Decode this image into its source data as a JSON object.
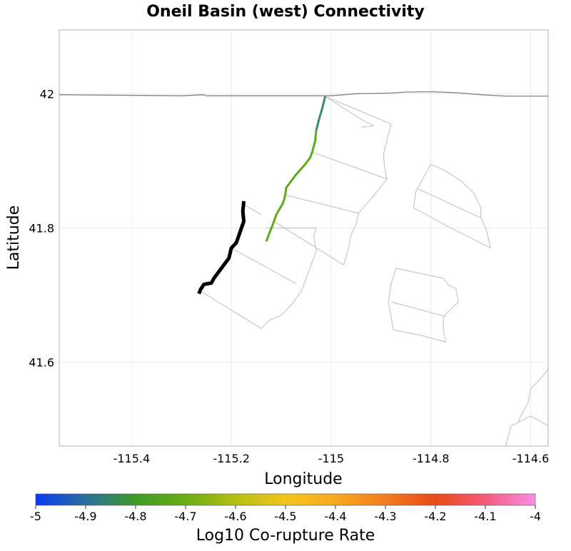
{
  "chart_data": {
    "type": "map",
    "title": "Oneil Basin (west) Connectivity",
    "xlabel": "Longitude",
    "ylabel": "Latitude",
    "xlim": [
      -115.545,
      -114.565
    ],
    "ylim": [
      41.475,
      42.095
    ],
    "xticks": [
      -115.4,
      -115.2,
      -115.0,
      -114.8,
      -114.6
    ],
    "xtick_labels": [
      "-115.4",
      "-115.2",
      "-115",
      "-114.8",
      "-114.6"
    ],
    "yticks": [
      41.6,
      41.8,
      42.0
    ],
    "ytick_labels": [
      "41.6",
      "41.8",
      "42"
    ],
    "grid": true,
    "boundary": {
      "name": "state-border",
      "color": "#808080",
      "coords": [
        [
          -115.545,
          41.9985
        ],
        [
          -115.38,
          41.9975
        ],
        [
          -115.3,
          41.997
        ],
        [
          -115.255,
          41.9985
        ],
        [
          -115.25,
          41.997
        ],
        [
          -115.08,
          41.997
        ],
        [
          -115.0,
          41.997
        ],
        [
          -114.95,
          42.0
        ],
        [
          -114.88,
          42.001
        ],
        [
          -114.85,
          42.0025
        ],
        [
          -114.8,
          42.003
        ],
        [
          -114.75,
          42.0015
        ],
        [
          -114.7,
          41.9985
        ],
        [
          -114.65,
          41.9965
        ],
        [
          -114.565,
          41.9965
        ]
      ]
    },
    "fault_outlines": [
      {
        "name": "oneil-basin-subsection-2",
        "coords": [
          [
            -115.012,
            41.996
          ],
          [
            -114.94,
            41.962
          ],
          [
            -114.915,
            41.952
          ],
          [
            -114.94,
            41.95
          ]
        ]
      },
      {
        "name": "oneil-basin-surface-1",
        "coords": [
          [
            -115.012,
            41.996
          ],
          [
            -114.88,
            41.955
          ],
          [
            -114.895,
            41.91
          ],
          [
            -114.893,
            41.89
          ],
          [
            -114.888,
            41.873
          ],
          [
            -114.915,
            41.848
          ],
          [
            -114.945,
            41.822
          ]
        ]
      },
      {
        "name": "oneil-basin-line-1",
        "coords": [
          [
            -115.038,
            41.913
          ],
          [
            -114.888,
            41.873
          ]
        ]
      },
      {
        "name": "oneil-basin-line-2",
        "coords": [
          [
            -115.092,
            41.849
          ],
          [
            -114.945,
            41.822
          ]
        ]
      },
      {
        "name": "oneil-basin-surface-2",
        "coords": [
          [
            -114.945,
            41.822
          ],
          [
            -114.95,
            41.805
          ],
          [
            -114.96,
            41.79
          ],
          [
            -114.965,
            41.77
          ],
          [
            -114.975,
            41.745
          ]
        ]
      },
      {
        "name": "oneil-basin-line-3",
        "coords": [
          [
            -115.115,
            41.81
          ],
          [
            -114.975,
            41.745
          ]
        ]
      },
      {
        "name": "oneil-basin-line-4",
        "coords": [
          [
            -115.13,
            41.8
          ],
          [
            -115.03,
            41.8
          ]
        ]
      },
      {
        "name": "oneil-basin-surface-3",
        "coords": [
          [
            -115.03,
            41.8
          ],
          [
            -115.035,
            41.788
          ],
          [
            -115.03,
            41.765
          ],
          [
            -115.04,
            41.745
          ],
          [
            -115.05,
            41.725
          ],
          [
            -115.06,
            41.705
          ],
          [
            -115.08,
            41.685
          ],
          [
            -115.1,
            41.67
          ],
          [
            -115.125,
            41.662
          ],
          [
            -115.14,
            41.65
          ]
        ]
      },
      {
        "name": "oneil-basin-line-5",
        "coords": [
          [
            -115.2,
            41.77
          ],
          [
            -115.07,
            41.717
          ]
        ]
      },
      {
        "name": "oneil-basin-line-6",
        "coords": [
          [
            -115.26,
            41.705
          ],
          [
            -115.14,
            41.65
          ]
        ]
      },
      {
        "name": "oneil-basin-line-7",
        "coords": [
          [
            -115.175,
            41.835
          ],
          [
            -115.14,
            41.82
          ]
        ]
      },
      {
        "name": "oneil-basin-east-1",
        "coords": [
          [
            -114.815,
            41.875
          ],
          [
            -114.8,
            41.895
          ],
          [
            -114.77,
            41.885
          ],
          [
            -114.74,
            41.87
          ],
          [
            -114.715,
            41.853
          ],
          [
            -114.7,
            41.83
          ],
          [
            -114.7,
            41.815
          ],
          [
            -114.69,
            41.8
          ],
          [
            -114.68,
            41.77
          ],
          [
            -114.76,
            41.8
          ],
          [
            -114.835,
            41.83
          ],
          [
            -114.83,
            41.855
          ],
          [
            -114.815,
            41.875
          ]
        ]
      },
      {
        "name": "oneil-basin-east-line",
        "coords": [
          [
            -114.825,
            41.858
          ],
          [
            -114.7,
            41.815
          ]
        ]
      },
      {
        "name": "oneil-basin-east-2",
        "coords": [
          [
            -114.88,
            41.715
          ],
          [
            -114.87,
            41.74
          ],
          [
            -114.82,
            41.732
          ],
          [
            -114.775,
            41.725
          ],
          [
            -114.765,
            41.715
          ],
          [
            -114.75,
            41.71
          ],
          [
            -114.745,
            41.69
          ],
          [
            -114.775,
            41.668
          ],
          [
            -114.775,
            41.648
          ],
          [
            -114.77,
            41.63
          ],
          [
            -114.82,
            41.64
          ],
          [
            -114.875,
            41.648
          ],
          [
            -114.88,
            41.668
          ],
          [
            -114.885,
            41.69
          ],
          [
            -114.88,
            41.715
          ]
        ]
      },
      {
        "name": "oneil-basin-east-2-line",
        "coords": [
          [
            -114.88,
            41.69
          ],
          [
            -114.77,
            41.668
          ]
        ]
      },
      {
        "name": "southeast-fault",
        "coords": [
          [
            -114.565,
            41.59
          ],
          [
            -114.575,
            41.58
          ],
          [
            -114.6,
            41.56
          ],
          [
            -114.605,
            41.54
          ],
          [
            -114.62,
            41.52
          ],
          [
            -114.625,
            41.51
          ],
          [
            -114.64,
            41.505
          ],
          [
            -114.645,
            41.49
          ],
          [
            -114.65,
            41.475
          ]
        ]
      },
      {
        "name": "southeast-fault-line",
        "coords": [
          [
            -114.565,
            41.505
          ],
          [
            -114.6,
            41.52
          ],
          [
            -114.625,
            41.51
          ]
        ]
      }
    ],
    "faults": [
      {
        "name": "oneil-basin-west",
        "log10_corupture_rate": null,
        "color": "#000000",
        "coords": [
          [
            -115.175,
            41.84
          ],
          [
            -115.177,
            41.825
          ],
          [
            -115.175,
            41.81
          ],
          [
            -115.182,
            41.795
          ],
          [
            -115.19,
            41.778
          ],
          [
            -115.2,
            41.77
          ],
          [
            -115.205,
            41.755
          ],
          [
            -115.215,
            41.745
          ],
          [
            -115.225,
            41.735
          ],
          [
            -115.235,
            41.725
          ],
          [
            -115.24,
            41.718
          ],
          [
            -115.255,
            41.716
          ],
          [
            -115.262,
            41.708
          ],
          [
            -115.265,
            41.702
          ]
        ]
      },
      {
        "name": "oneil-basin-middle",
        "log10_corupture_rate": -4.8,
        "color": "#5fa81a",
        "coords": [
          [
            -115.13,
            41.78
          ],
          [
            -115.125,
            41.79
          ],
          [
            -115.117,
            41.805
          ],
          [
            -115.11,
            41.82
          ],
          [
            -115.098,
            41.835
          ],
          [
            -115.095,
            41.84
          ],
          [
            -115.092,
            41.849
          ],
          [
            -115.09,
            41.86
          ],
          [
            -115.072,
            41.878
          ],
          [
            -115.052,
            41.895
          ],
          [
            -115.042,
            41.905
          ],
          [
            -115.038,
            41.913
          ],
          [
            -115.032,
            41.93
          ],
          [
            -115.03,
            41.945
          ]
        ]
      },
      {
        "name": "oneil-basin-north",
        "log10_corupture_rate": -4.9,
        "color": "#3c8b6a",
        "coords": [
          [
            -115.03,
            41.945
          ],
          [
            -115.025,
            41.96
          ],
          [
            -115.018,
            41.978
          ],
          [
            -115.012,
            41.996
          ]
        ]
      }
    ],
    "colorbar": {
      "label": "Log10 Co-rupture Rate",
      "min": -5,
      "max": -4,
      "ticks": [
        -5,
        -4.9,
        -4.8,
        -4.7,
        -4.6,
        -4.5,
        -4.4,
        -4.3,
        -4.2,
        -4.1,
        -4
      ],
      "tick_labels": [
        "-5",
        "-4.9",
        "-4.8",
        "-4.7",
        "-4.6",
        "-4.5",
        "-4.4",
        "-4.3",
        "-4.2",
        "-4.1",
        "-4"
      ],
      "stops": [
        {
          "v": -5.0,
          "color": "#0a3cf0"
        },
        {
          "v": -4.9,
          "color": "#2d6e9c"
        },
        {
          "v": -4.8,
          "color": "#3f9a28"
        },
        {
          "v": -4.7,
          "color": "#6aad12"
        },
        {
          "v": -4.6,
          "color": "#b6bf14"
        },
        {
          "v": -4.5,
          "color": "#f3c51c"
        },
        {
          "v": -4.4,
          "color": "#f8a820"
        },
        {
          "v": -4.3,
          "color": "#f27d20"
        },
        {
          "v": -4.2,
          "color": "#e94a1a"
        },
        {
          "v": -4.1,
          "color": "#f55c7c"
        },
        {
          "v": -4.0,
          "color": "#f68ee8"
        }
      ]
    }
  }
}
